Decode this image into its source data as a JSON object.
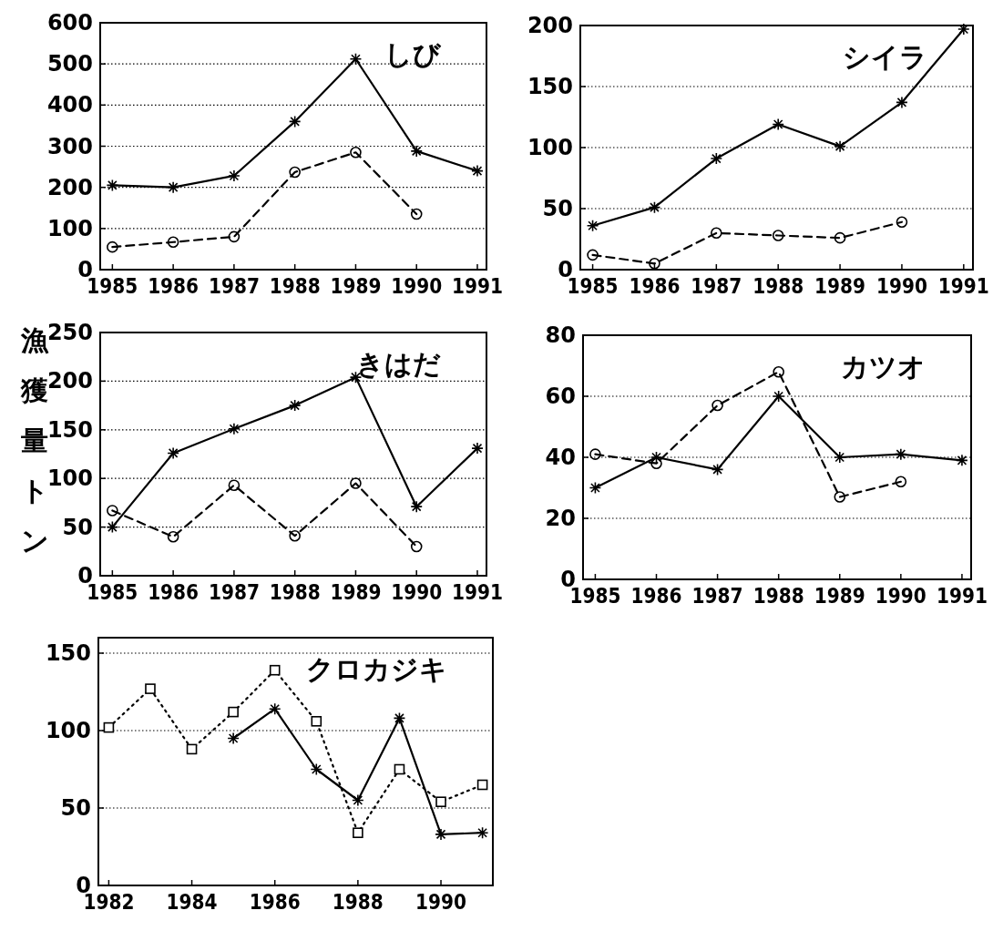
{
  "chart_data": [
    {
      "type": "line",
      "title": "しび",
      "x": [
        1985,
        1986,
        1987,
        1988,
        1989,
        1990,
        1991
      ],
      "xlim": [
        1984.8,
        1991.15
      ],
      "xticks": [
        1985,
        1986,
        1987,
        1988,
        1989,
        1990,
        1991
      ],
      "ylim": [
        0,
        600
      ],
      "yticks": [
        0,
        100,
        200,
        300,
        400,
        500,
        600
      ],
      "grid": "y",
      "series": [
        {
          "color": "#000000",
          "marker": "cross",
          "line_style": "solid",
          "values": [
            205,
            200,
            228,
            360,
            512,
            288,
            240
          ]
        },
        {
          "color": "#000000",
          "marker": "circle",
          "line_style": "dashed",
          "values": [
            55,
            67,
            80,
            237,
            285,
            135,
            null
          ]
        }
      ]
    },
    {
      "type": "line",
      "title": "シイラ",
      "x": [
        1985,
        1986,
        1987,
        1988,
        1989,
        1990,
        1991
      ],
      "xlim": [
        1984.8,
        1991.15
      ],
      "xticks": [
        1985,
        1986,
        1987,
        1988,
        1989,
        1990,
        1991
      ],
      "ylim": [
        0,
        200
      ],
      "yticks": [
        0,
        50,
        100,
        150,
        200
      ],
      "grid": "y",
      "series": [
        {
          "color": "#000000",
          "marker": "cross",
          "line_style": "solid",
          "values": [
            36,
            51,
            91,
            119,
            101,
            137,
            197
          ]
        },
        {
          "color": "#000000",
          "marker": "circle",
          "line_style": "dashed",
          "values": [
            12,
            5,
            30,
            28,
            26,
            39,
            null
          ]
        }
      ]
    },
    {
      "type": "line",
      "title": "きはだ",
      "ylabel": "漁獲量トン",
      "x": [
        1985,
        1986,
        1987,
        1988,
        1989,
        1990,
        1991
      ],
      "xlim": [
        1984.8,
        1991.15
      ],
      "xticks": [
        1985,
        1986,
        1987,
        1988,
        1989,
        1990,
        1991
      ],
      "ylim": [
        0,
        250
      ],
      "yticks": [
        0,
        50,
        100,
        150,
        200,
        250
      ],
      "grid": "y",
      "series": [
        {
          "color": "#000000",
          "marker": "cross",
          "line_style": "solid",
          "values": [
            50,
            126,
            151,
            175,
            204,
            71,
            131
          ]
        },
        {
          "color": "#000000",
          "marker": "circle",
          "line_style": "dashed",
          "values": [
            67,
            40,
            93,
            41,
            95,
            30,
            null
          ]
        }
      ]
    },
    {
      "type": "line",
      "title": "カツオ",
      "x": [
        1985,
        1986,
        1987,
        1988,
        1989,
        1990,
        1991
      ],
      "xlim": [
        1984.8,
        1991.15
      ],
      "xticks": [
        1985,
        1986,
        1987,
        1988,
        1989,
        1990,
        1991
      ],
      "ylim": [
        0,
        80
      ],
      "yticks": [
        0,
        20,
        40,
        60,
        80
      ],
      "grid": "y",
      "series": [
        {
          "color": "#000000",
          "marker": "cross",
          "line_style": "solid",
          "values": [
            30,
            40,
            36,
            60,
            40,
            41,
            39
          ]
        },
        {
          "color": "#000000",
          "marker": "circle",
          "line_style": "dashed",
          "values": [
            41,
            38,
            57,
            68,
            27,
            32,
            null
          ]
        }
      ]
    },
    {
      "type": "line",
      "title": "クロカジキ",
      "x": [
        1982,
        1983,
        1984,
        1985,
        1986,
        1987,
        1988,
        1989,
        1990,
        1991
      ],
      "xlim": [
        1981.75,
        1991.25
      ],
      "xticks": [
        1982,
        1984,
        1986,
        1988,
        1990
      ],
      "ylim": [
        0,
        160
      ],
      "yticks": [
        0,
        50,
        100,
        150
      ],
      "grid": "y",
      "series": [
        {
          "color": "#000000",
          "marker": "square",
          "line_style": "dotted",
          "values": [
            102,
            127,
            88,
            112,
            139,
            106,
            34,
            75,
            54,
            65
          ]
        },
        {
          "color": "#000000",
          "marker": "cross",
          "line_style": "solid",
          "values": [
            null,
            null,
            null,
            95,
            114,
            75,
            55,
            108,
            33,
            34
          ]
        }
      ]
    }
  ]
}
